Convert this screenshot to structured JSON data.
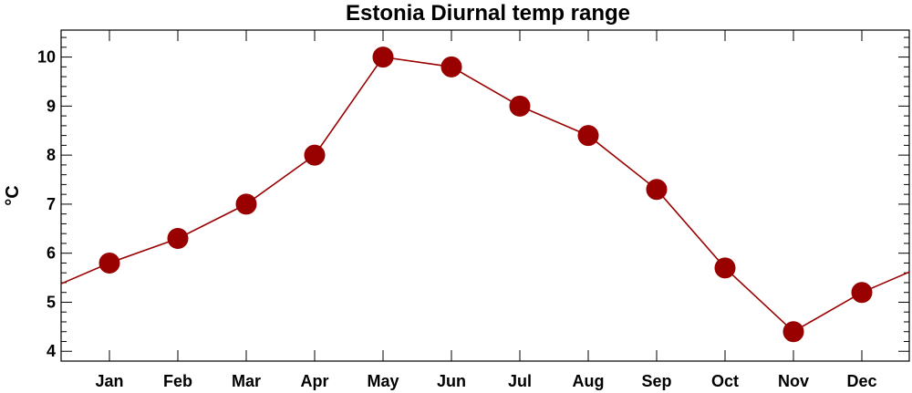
{
  "chart_data": {
    "type": "line",
    "title": "Estonia Diurnal temp range",
    "xlabel": "",
    "ylabel": "°C",
    "categories": [
      "Jan",
      "Feb",
      "Mar",
      "Apr",
      "May",
      "Jun",
      "Jul",
      "Aug",
      "Sep",
      "Oct",
      "Nov",
      "Dec"
    ],
    "values": [
      5.8,
      6.3,
      7.0,
      8.0,
      10.0,
      9.8,
      9.0,
      8.4,
      7.3,
      5.7,
      4.4,
      5.2
    ],
    "ylim": [
      3.8,
      10.55
    ],
    "yticks": [
      4,
      5,
      6,
      7,
      8,
      9,
      10
    ],
    "series_color": "#990000",
    "grid": false,
    "wrap_ends": true
  }
}
